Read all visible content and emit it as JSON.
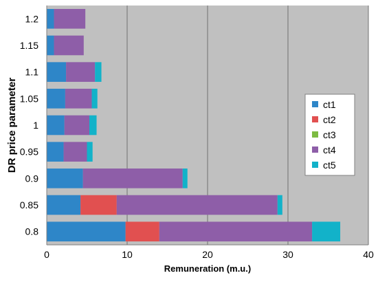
{
  "chart_data": {
    "type": "bar",
    "orientation": "horizontal",
    "stacked": true,
    "title": "",
    "xlabel": "Remuneration (m.u.)",
    "ylabel": "DR price parameter",
    "xlim": [
      0,
      40
    ],
    "x_ticks": [
      "0",
      "10",
      "20",
      "30",
      "40"
    ],
    "categories": [
      "0.8",
      "0.85",
      "0.9",
      "0.95",
      "1",
      "1.05",
      "1.1",
      "1.15",
      "1.2"
    ],
    "series": [
      {
        "name": "ct1",
        "color": "#2e86c8",
        "values": [
          9.8,
          4.2,
          4.5,
          2.1,
          2.2,
          2.3,
          2.4,
          0.9,
          0.9
        ]
      },
      {
        "name": "ct2",
        "color": "#e15050",
        "values": [
          4.2,
          4.5,
          0,
          0,
          0,
          0,
          0,
          0,
          0
        ]
      },
      {
        "name": "ct3",
        "color": "#7dbb42",
        "values": [
          0,
          0,
          0,
          0,
          0,
          0,
          0,
          0,
          0
        ]
      },
      {
        "name": "ct4",
        "color": "#8e5ea8",
        "values": [
          19.0,
          20.0,
          12.4,
          2.9,
          3.1,
          3.3,
          3.6,
          3.7,
          3.9
        ]
      },
      {
        "name": "ct5",
        "color": "#12b2c9",
        "values": [
          3.5,
          0.6,
          0.6,
          0.7,
          0.9,
          0.7,
          0.8,
          0,
          0
        ]
      }
    ],
    "grid": "vertical",
    "legend_position": "right"
  }
}
